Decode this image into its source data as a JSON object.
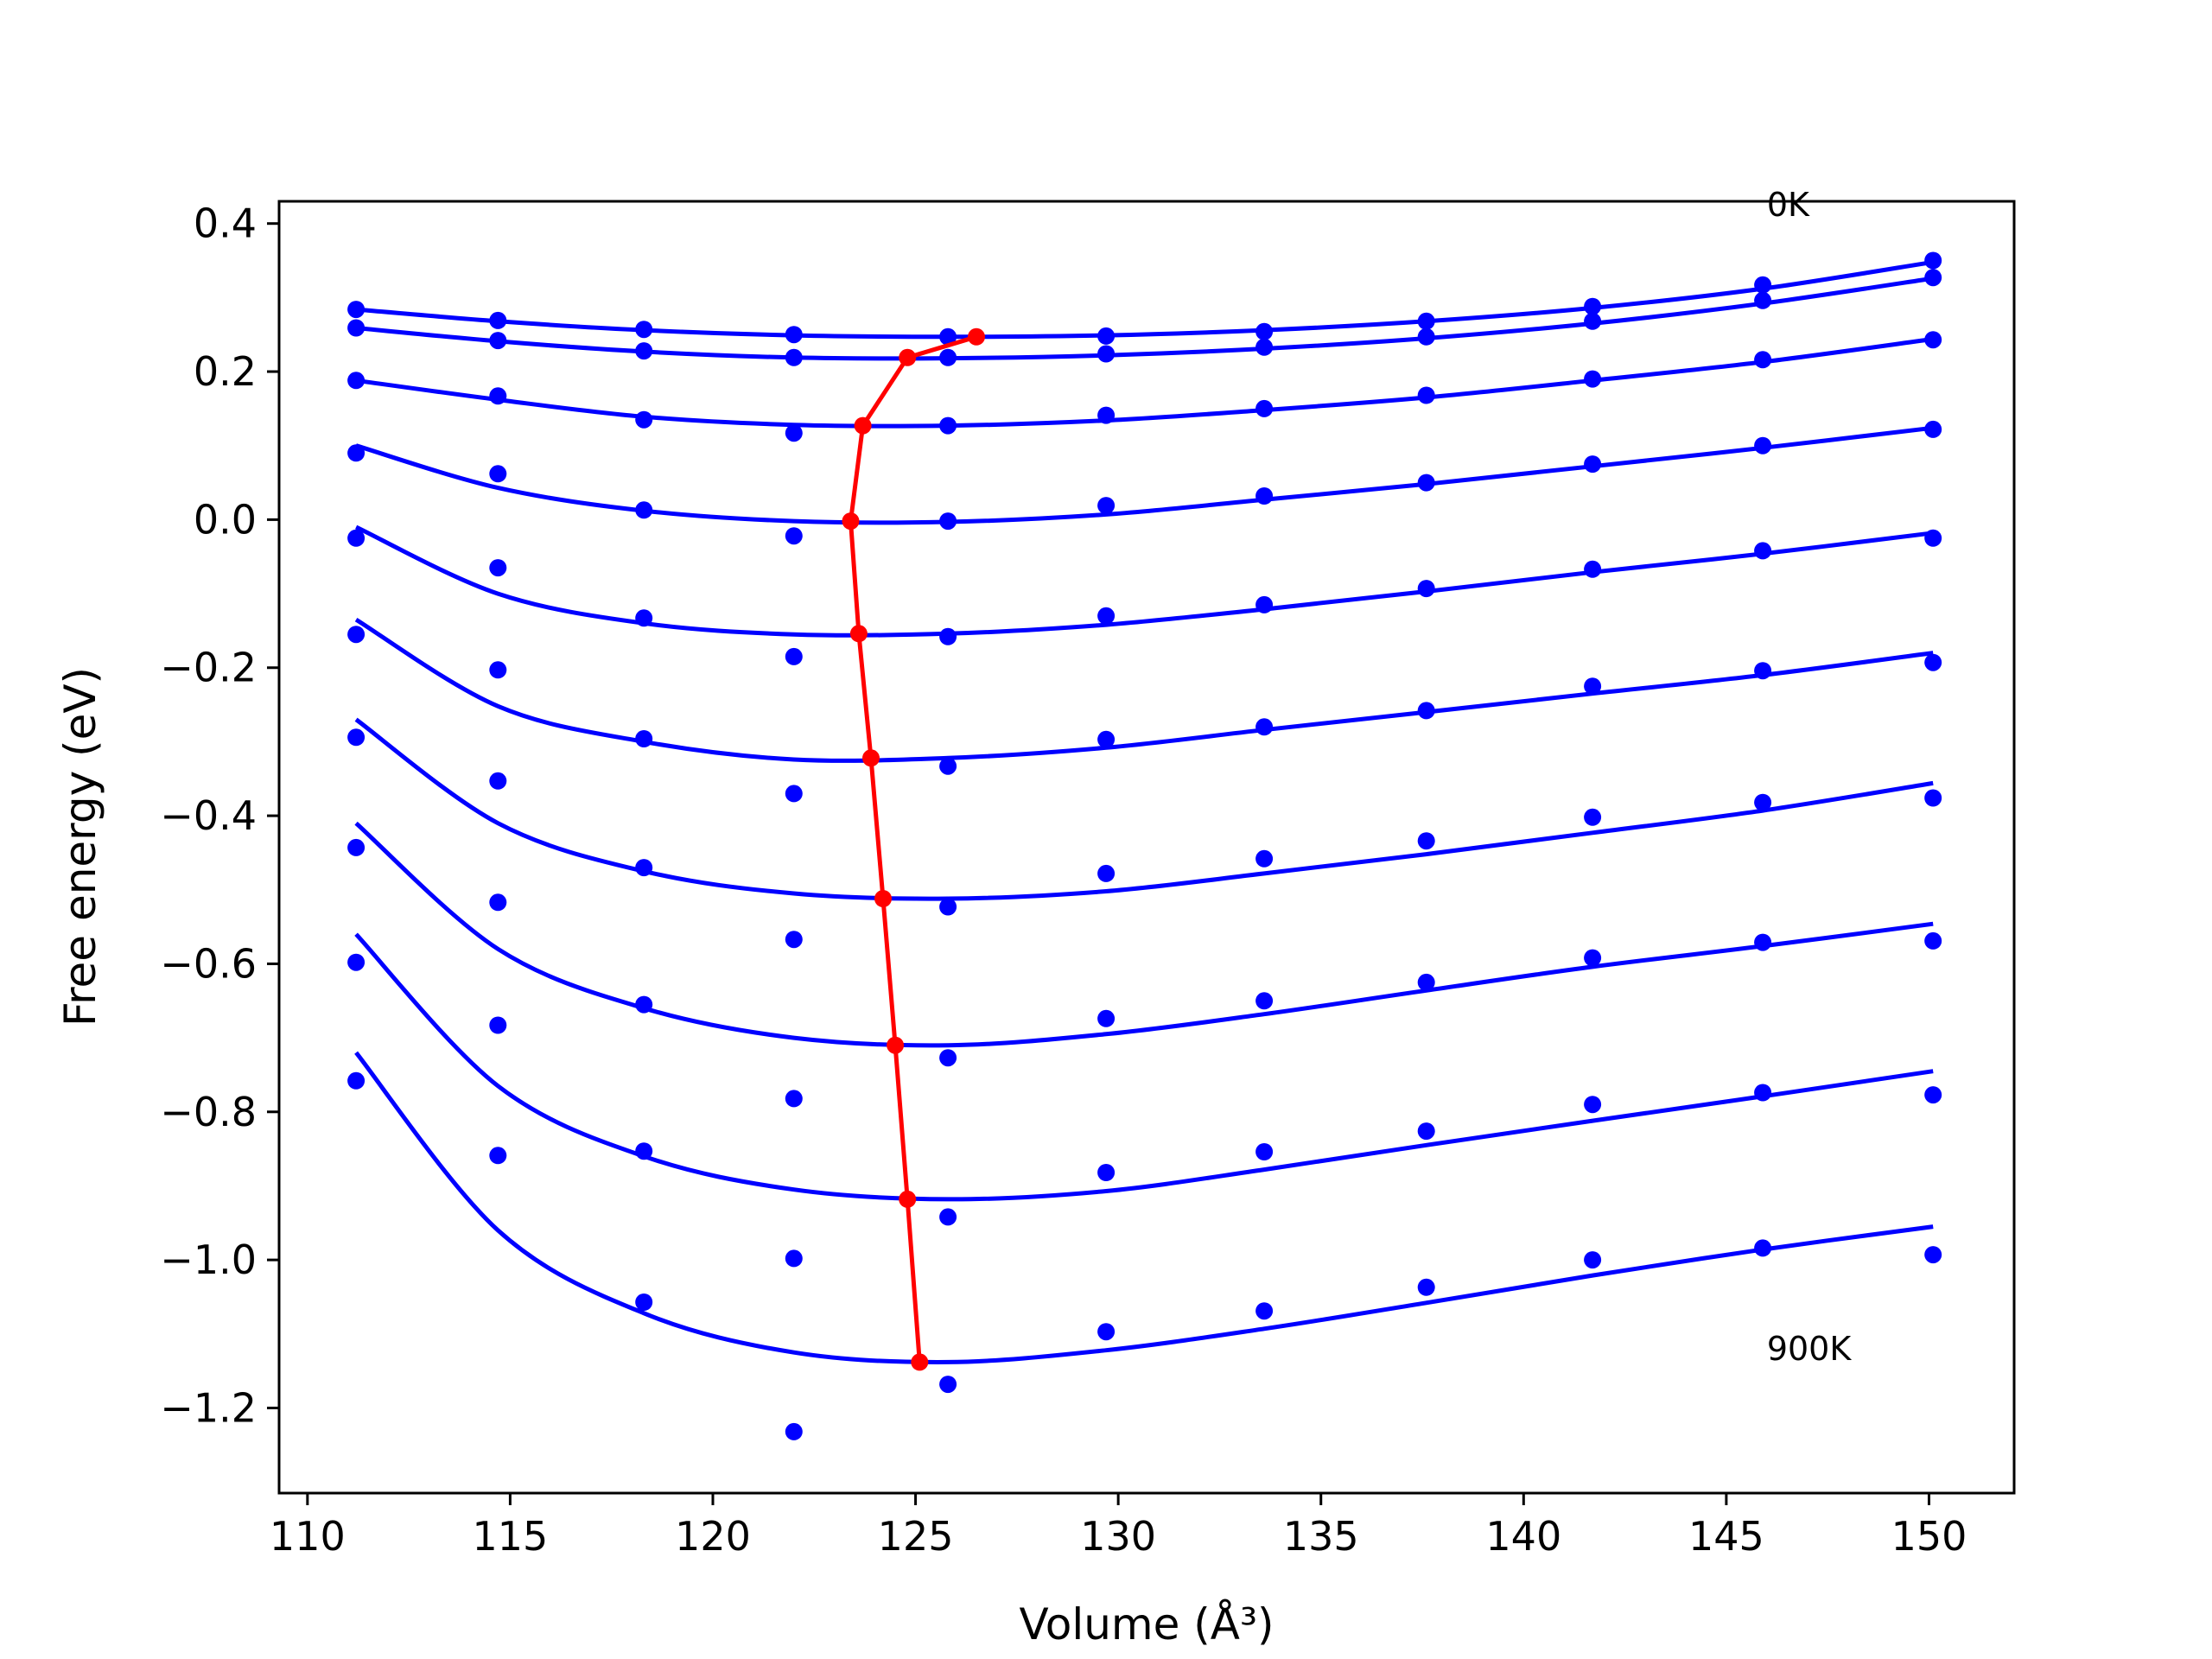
{
  "chart_data": {
    "type": "line",
    "title": "",
    "xlabel": "Volume (Å³)",
    "ylabel": "Free energy (eV)",
    "xlim": [
      109.3,
      152.1
    ],
    "ylim": [
      -1.315,
      0.43
    ],
    "xticks": [
      110,
      115,
      120,
      125,
      130,
      135,
      140,
      145,
      150
    ],
    "xtick_labels": [
      "110",
      "115",
      "120",
      "125",
      "130",
      "135",
      "140",
      "145",
      "150"
    ],
    "yticks": [
      0.4,
      0.2,
      0.0,
      -0.2,
      -0.4,
      -0.6,
      -0.8,
      -1.0,
      -1.2
    ],
    "ytick_labels": [
      "0.4",
      "0.2",
      "0.0",
      "−0.2",
      "−0.4",
      "−0.6",
      "−0.8",
      "−1.0",
      "−1.2"
    ],
    "grid": false,
    "legend": "none",
    "colors": {
      "points": "#0000ff",
      "fits": "#0000ff",
      "minimum_path": "#ff0000"
    },
    "x": [
      111.2,
      114.7,
      118.3,
      122.0,
      125.8,
      129.7,
      133.6,
      137.6,
      141.7,
      145.9,
      150.1
    ],
    "series": [
      {
        "values": [
          0.284,
          0.269,
          0.257,
          0.25,
          0.247,
          0.248,
          0.254,
          0.268,
          0.288,
          0.317,
          0.35
        ],
        "fit": [
          [
            111.2,
            0.284
          ],
          [
            114.7,
            0.268
          ],
          [
            118.3,
            0.256
          ],
          [
            122.0,
            0.249
          ],
          [
            125.8,
            0.247
          ],
          [
            129.7,
            0.249
          ],
          [
            133.6,
            0.256
          ],
          [
            137.6,
            0.268
          ],
          [
            141.7,
            0.286
          ],
          [
            145.9,
            0.312
          ],
          [
            150.1,
            0.348
          ]
        ]
      },
      {
        "values": [
          0.259,
          0.242,
          0.228,
          0.219,
          0.219,
          0.224,
          0.233,
          0.247,
          0.268,
          0.296,
          0.327
        ],
        "fit": [
          [
            111.2,
            0.259
          ],
          [
            114.7,
            0.241
          ],
          [
            118.3,
            0.227
          ],
          [
            122.0,
            0.219
          ],
          [
            125.8,
            0.218
          ],
          [
            129.7,
            0.222
          ],
          [
            133.6,
            0.231
          ],
          [
            137.6,
            0.245
          ],
          [
            141.7,
            0.265
          ],
          [
            145.9,
            0.292
          ],
          [
            150.1,
            0.326
          ]
        ]
      },
      {
        "values": [
          0.188,
          0.167,
          0.135,
          0.117,
          0.127,
          0.141,
          0.15,
          0.168,
          0.19,
          0.216,
          0.243
        ],
        "fit": [
          [
            111.2,
            0.188
          ],
          [
            114.7,
            0.162
          ],
          [
            118.3,
            0.139
          ],
          [
            122.0,
            0.128
          ],
          [
            125.8,
            0.127
          ],
          [
            129.7,
            0.134
          ],
          [
            133.6,
            0.148
          ],
          [
            137.6,
            0.165
          ],
          [
            141.7,
            0.188
          ],
          [
            145.9,
            0.213
          ],
          [
            150.1,
            0.244
          ]
        ]
      },
      {
        "values": [
          0.09,
          0.062,
          0.013,
          -0.022,
          -0.002,
          0.019,
          0.032,
          0.05,
          0.075,
          0.1,
          0.122
        ],
        "fit": [
          [
            111.2,
            0.1
          ],
          [
            114.7,
            0.043
          ],
          [
            118.3,
            0.012
          ],
          [
            122.0,
            -0.002
          ],
          [
            125.8,
            -0.003
          ],
          [
            129.7,
            0.007
          ],
          [
            133.6,
            0.027
          ],
          [
            137.6,
            0.048
          ],
          [
            141.7,
            0.072
          ],
          [
            145.9,
            0.097
          ],
          [
            150.1,
            0.124
          ]
        ]
      },
      {
        "values": [
          -0.025,
          -0.065,
          -0.133,
          -0.185,
          -0.158,
          -0.13,
          -0.115,
          -0.093,
          -0.067,
          -0.042,
          -0.025
        ],
        "fit": [
          [
            111.2,
            -0.01
          ],
          [
            114.7,
            -0.1
          ],
          [
            118.3,
            -0.14
          ],
          [
            122.0,
            -0.155
          ],
          [
            125.8,
            -0.154
          ],
          [
            129.7,
            -0.142
          ],
          [
            133.6,
            -0.121
          ],
          [
            137.6,
            -0.097
          ],
          [
            141.7,
            -0.071
          ],
          [
            145.9,
            -0.046
          ],
          [
            150.1,
            -0.018
          ]
        ]
      },
      {
        "values": [
          -0.155,
          -0.203,
          -0.296,
          -0.37,
          -0.333,
          -0.297,
          -0.28,
          -0.258,
          -0.225,
          -0.204,
          -0.193
        ],
        "fit": [
          [
            111.2,
            -0.135
          ],
          [
            114.7,
            -0.252
          ],
          [
            118.3,
            -0.3
          ],
          [
            122.0,
            -0.324
          ],
          [
            125.8,
            -0.322
          ],
          [
            129.7,
            -0.308
          ],
          [
            133.6,
            -0.284
          ],
          [
            137.6,
            -0.26
          ],
          [
            141.7,
            -0.235
          ],
          [
            145.9,
            -0.21
          ],
          [
            150.1,
            -0.18
          ]
        ]
      },
      {
        "values": [
          -0.294,
          -0.353,
          -0.47,
          -0.567,
          -0.523,
          -0.478,
          -0.458,
          -0.434,
          -0.402,
          -0.382,
          -0.376
        ],
        "fit": [
          [
            111.2,
            -0.27
          ],
          [
            114.7,
            -0.41
          ],
          [
            118.3,
            -0.475
          ],
          [
            122.0,
            -0.505
          ],
          [
            125.8,
            -0.512
          ],
          [
            129.7,
            -0.502
          ],
          [
            133.6,
            -0.478
          ],
          [
            137.6,
            -0.452
          ],
          [
            141.7,
            -0.423
          ],
          [
            145.9,
            -0.393
          ],
          [
            150.1,
            -0.356
          ]
        ]
      },
      {
        "values": [
          -0.443,
          -0.517,
          -0.655,
          -0.782,
          -0.727,
          -0.674,
          -0.65,
          -0.625,
          -0.592,
          -0.571,
          -0.569
        ],
        "fit": [
          [
            111.2,
            -0.41
          ],
          [
            114.7,
            -0.58
          ],
          [
            118.3,
            -0.66
          ],
          [
            122.0,
            -0.7
          ],
          [
            125.8,
            -0.71
          ],
          [
            129.7,
            -0.695
          ],
          [
            133.6,
            -0.668
          ],
          [
            137.6,
            -0.636
          ],
          [
            141.7,
            -0.604
          ],
          [
            145.9,
            -0.576
          ],
          [
            150.1,
            -0.546
          ]
        ]
      },
      {
        "values": [
          -0.598,
          -0.683,
          -0.853,
          -0.998,
          -0.942,
          -0.882,
          -0.854,
          -0.826,
          -0.79,
          -0.774,
          -0.777
        ],
        "fit": [
          [
            111.2,
            -0.56
          ],
          [
            114.7,
            -0.765
          ],
          [
            118.3,
            -0.86
          ],
          [
            122.0,
            -0.905
          ],
          [
            125.8,
            -0.918
          ],
          [
            129.7,
            -0.907
          ],
          [
            133.6,
            -0.878
          ],
          [
            137.6,
            -0.845
          ],
          [
            141.7,
            -0.812
          ],
          [
            145.9,
            -0.779
          ],
          [
            150.1,
            -0.745
          ]
        ]
      },
      {
        "values": [
          -0.758,
          -0.859,
          -1.057,
          -1.232,
          -1.168,
          -1.097,
          -1.069,
          -1.037,
          -1.0,
          -0.984,
          -0.993
        ],
        "fit": [
          [
            111.2,
            -0.72
          ],
          [
            114.7,
            -0.96
          ],
          [
            118.3,
            -1.072
          ],
          [
            122.0,
            -1.125
          ],
          [
            125.8,
            -1.138
          ],
          [
            129.7,
            -1.122
          ],
          [
            133.6,
            -1.093
          ],
          [
            137.6,
            -1.058
          ],
          [
            141.7,
            -1.021
          ],
          [
            145.9,
            -0.986
          ],
          [
            150.1,
            -0.955
          ]
        ]
      }
    ],
    "minimum_path": {
      "x": [
        126.5,
        124.8,
        123.7,
        123.4,
        123.6,
        123.9,
        124.2,
        124.5,
        124.8,
        125.1
      ],
      "y": [
        0.247,
        0.219,
        0.127,
        -0.002,
        -0.154,
        -0.322,
        -0.512,
        -0.71,
        -0.918,
        -1.138
      ]
    },
    "annotations": [
      {
        "text": "0K",
        "x": 146.0,
        "y": 0.41
      },
      {
        "text": "900K",
        "x": 146.0,
        "y": -1.135
      }
    ]
  }
}
